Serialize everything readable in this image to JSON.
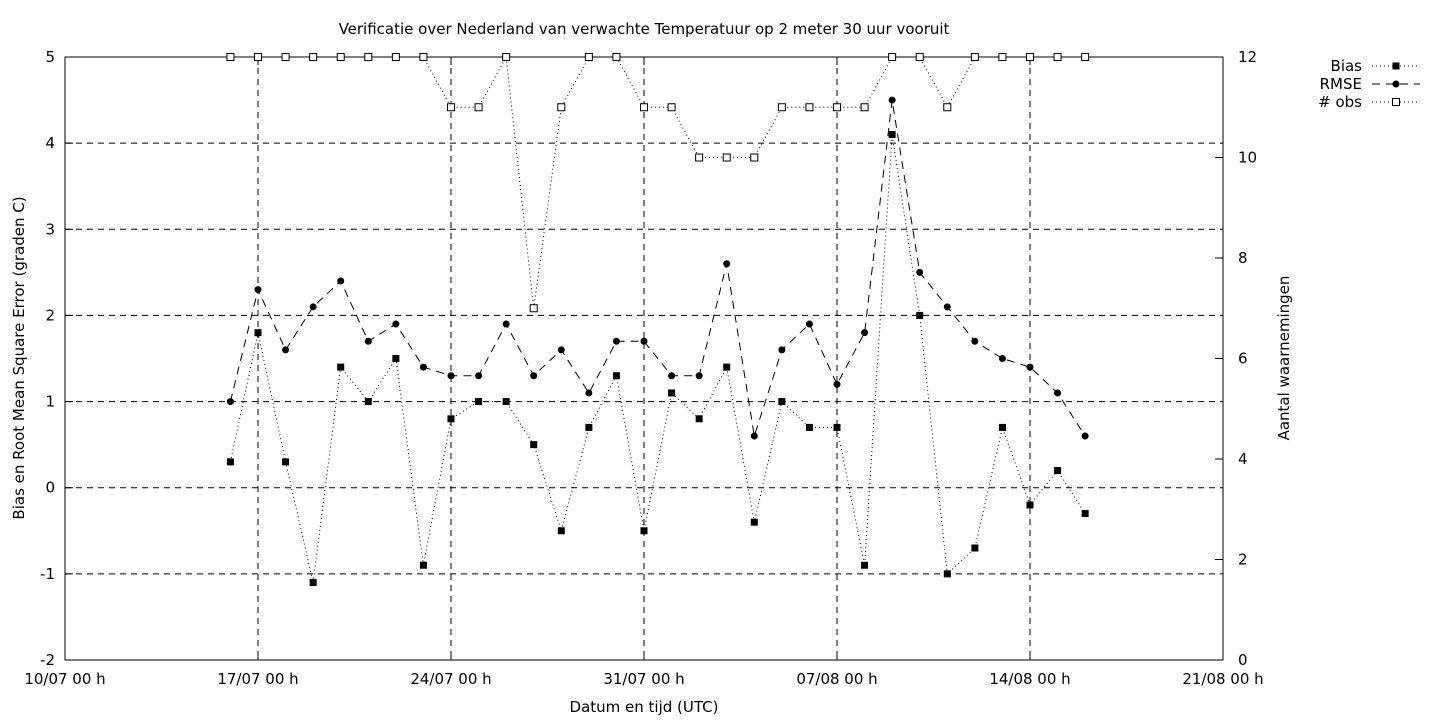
{
  "chart_data": {
    "type": "line",
    "title": "Verificatie over Nederland van verwachte Temperatuur op 2 meter 30 uur vooruit",
    "xlabel": "Datum en tijd (UTC)",
    "ylabel": "Bias en Root Mean Square Error (graden C)",
    "y2label": "Aantal waarnemingen",
    "ylim": [
      -2,
      5
    ],
    "y2lim": [
      0,
      12
    ],
    "xlim": [
      "10/07 00 h",
      "21/08 00 h"
    ],
    "x_ticks": [
      "10/07 00 h",
      "17/07 00 h",
      "24/07 00 h",
      "31/07 00 h",
      "07/08 00 h",
      "14/08 00 h",
      "21/08 00 h"
    ],
    "y_ticks": [
      "-2",
      "-1",
      "0",
      "1",
      "2",
      "3",
      "4",
      "5"
    ],
    "y2_ticks": [
      "0",
      "2",
      "4",
      "6",
      "8",
      "10",
      "12"
    ],
    "grid": true,
    "legend_position": "outside-top-right",
    "dates": [
      "16/07 00 h",
      "17/07 00 h",
      "18/07 00 h",
      "19/07 00 h",
      "20/07 00 h",
      "21/07 00 h",
      "22/07 00 h",
      "23/07 00 h",
      "24/07 00 h",
      "25/07 00 h",
      "26/07 00 h",
      "27/07 00 h",
      "28/07 00 h",
      "29/07 00 h",
      "30/07 00 h",
      "31/07 00 h",
      "01/08 00 h",
      "02/08 00 h",
      "03/08 00 h",
      "04/08 00 h",
      "05/08 00 h",
      "06/08 00 h",
      "07/08 00 h",
      "08/08 00 h",
      "09/08 00 h",
      "10/08 00 h",
      "11/08 00 h",
      "12/08 00 h",
      "13/08 00 h",
      "14/08 00 h",
      "15/08 00 h",
      "16/08 00 h"
    ],
    "series": [
      {
        "name": "Bias",
        "axis": "left",
        "style": "dotted-filled-square",
        "values": [
          0.3,
          1.8,
          0.3,
          -1.1,
          1.4,
          1.0,
          1.5,
          -0.9,
          0.8,
          1.0,
          1.0,
          0.5,
          -0.5,
          0.7,
          1.3,
          -0.5,
          1.1,
          0.8,
          1.4,
          -0.4,
          1.0,
          0.7,
          0.7,
          -0.9,
          4.1,
          2.0,
          -1.0,
          -0.7,
          0.7,
          -0.2,
          0.2,
          -0.3
        ]
      },
      {
        "name": "RMSE",
        "axis": "left",
        "style": "dashed-filled-circle",
        "values": [
          1.0,
          2.3,
          1.6,
          2.1,
          2.4,
          1.7,
          1.9,
          1.4,
          1.3,
          1.3,
          1.9,
          1.3,
          1.6,
          1.1,
          1.7,
          1.7,
          1.3,
          1.3,
          2.6,
          0.6,
          1.6,
          1.9,
          1.2,
          1.8,
          4.5,
          2.5,
          2.1,
          1.7,
          1.5,
          1.4,
          1.1,
          0.6
        ]
      },
      {
        "name": "# obs",
        "axis": "right",
        "style": "dotted-open-square",
        "values": [
          12,
          12,
          12,
          12,
          12,
          12,
          12,
          12,
          11,
          11,
          12,
          7,
          11,
          12,
          12,
          11,
          11,
          10,
          10,
          10,
          11,
          11,
          11,
          11,
          12,
          12,
          11,
          12,
          12,
          12,
          12,
          12
        ]
      }
    ]
  }
}
